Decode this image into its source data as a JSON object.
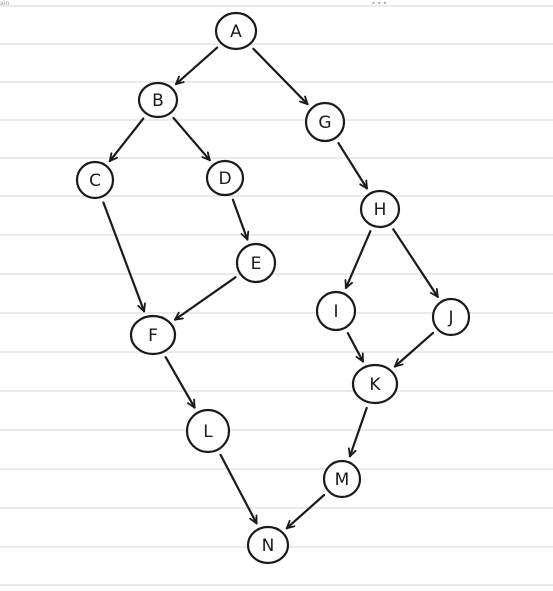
{
  "corner_text": "ain",
  "top_dots": "•••",
  "colors": {
    "ink": "#1a1a1a",
    "rule": "#d6d6d6",
    "paper": "#ffffff"
  },
  "nodes": [
    {
      "id": "A",
      "label": "A"
    },
    {
      "id": "B",
      "label": "B"
    },
    {
      "id": "G",
      "label": "G"
    },
    {
      "id": "C",
      "label": "C"
    },
    {
      "id": "D",
      "label": "D"
    },
    {
      "id": "H",
      "label": "H"
    },
    {
      "id": "E",
      "label": "E"
    },
    {
      "id": "I",
      "label": "I"
    },
    {
      "id": "J",
      "label": "J"
    },
    {
      "id": "F",
      "label": "F"
    },
    {
      "id": "K",
      "label": "K"
    },
    {
      "id": "L",
      "label": "L"
    },
    {
      "id": "M",
      "label": "M"
    },
    {
      "id": "N",
      "label": "N"
    }
  ],
  "edges": [
    {
      "from": "A",
      "to": "B"
    },
    {
      "from": "A",
      "to": "G"
    },
    {
      "from": "B",
      "to": "C"
    },
    {
      "from": "B",
      "to": "D"
    },
    {
      "from": "G",
      "to": "H"
    },
    {
      "from": "C",
      "to": "F"
    },
    {
      "from": "D",
      "to": "E"
    },
    {
      "from": "E",
      "to": "F"
    },
    {
      "from": "H",
      "to": "I"
    },
    {
      "from": "H",
      "to": "J"
    },
    {
      "from": "I",
      "to": "K"
    },
    {
      "from": "J",
      "to": "K"
    },
    {
      "from": "F",
      "to": "L"
    },
    {
      "from": "K",
      "to": "M"
    },
    {
      "from": "L",
      "to": "N"
    },
    {
      "from": "M",
      "to": "N"
    }
  ]
}
